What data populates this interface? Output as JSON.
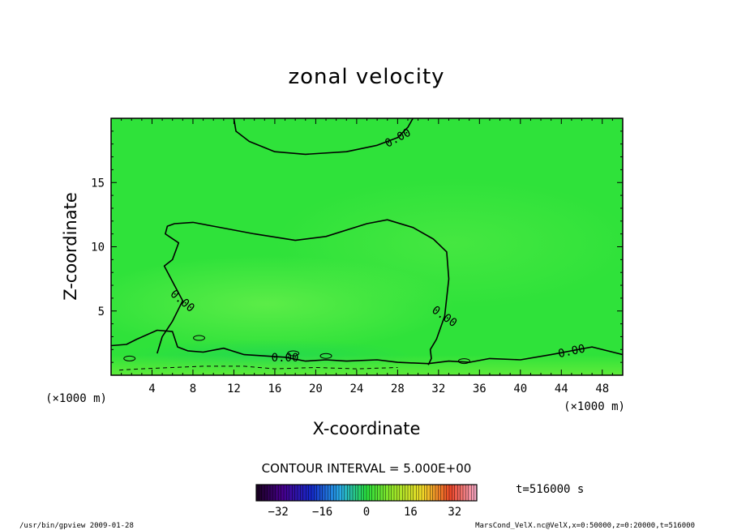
{
  "chart_data": {
    "type": "heatmap",
    "title": "zonal velocity",
    "xlabel": "X-coordinate",
    "ylabel": "Z-coordinate",
    "x_unit": "(×1000 m)",
    "y_unit": "(×1000 m)",
    "xlim": [
      0,
      50
    ],
    "ylim": [
      0,
      20
    ],
    "x_ticks": [
      4,
      8,
      12,
      16,
      20,
      24,
      28,
      32,
      36,
      40,
      44,
      48
    ],
    "y_ticks": [
      5,
      10,
      15
    ],
    "contour_interval_text": "CONTOUR INTERVAL = 5.000E+00",
    "contour_label": "0.00",
    "contours_zero": [
      [
        [
          12.0,
          20.0
        ],
        [
          12.2,
          19.0
        ],
        [
          13.5,
          18.2
        ],
        [
          16.0,
          17.4
        ],
        [
          19.0,
          17.2
        ],
        [
          23.0,
          17.4
        ],
        [
          26.0,
          17.9
        ],
        [
          28.0,
          18.5
        ],
        [
          29.0,
          19.3
        ],
        [
          29.5,
          20.0
        ]
      ],
      [
        [
          4.5,
          1.7
        ],
        [
          5.0,
          3.0
        ],
        [
          6.0,
          4.2
        ],
        [
          7.0,
          5.8
        ],
        [
          6.2,
          7.0
        ],
        [
          5.2,
          8.5
        ],
        [
          6.0,
          9.0
        ],
        [
          6.6,
          10.3
        ],
        [
          5.3,
          11.0
        ],
        [
          5.5,
          11.6
        ],
        [
          6.2,
          11.8
        ],
        [
          8.0,
          11.9
        ],
        [
          10.0,
          11.6
        ],
        [
          14.0,
          11.0
        ],
        [
          18.0,
          10.5
        ],
        [
          21.0,
          10.8
        ],
        [
          25.0,
          11.8
        ],
        [
          27.0,
          12.1
        ],
        [
          29.5,
          11.5
        ],
        [
          31.5,
          10.6
        ],
        [
          32.8,
          9.6
        ],
        [
          33.0,
          7.5
        ],
        [
          32.6,
          4.6
        ],
        [
          31.8,
          2.8
        ],
        [
          31.2,
          2.0
        ],
        [
          31.3,
          1.3
        ],
        [
          31.0,
          0.8
        ]
      ],
      [
        [
          0.0,
          2.3
        ],
        [
          1.5,
          2.4
        ],
        [
          2.5,
          2.8
        ],
        [
          4.5,
          3.5
        ],
        [
          6.0,
          3.4
        ],
        [
          6.5,
          2.2
        ],
        [
          7.5,
          1.9
        ],
        [
          9.0,
          1.8
        ],
        [
          11.0,
          2.1
        ],
        [
          13.0,
          1.6
        ],
        [
          15.0,
          1.5
        ],
        [
          17.0,
          1.4
        ],
        [
          19.0,
          1.1
        ],
        [
          21.0,
          1.2
        ],
        [
          23.0,
          1.1
        ],
        [
          26.0,
          1.2
        ],
        [
          28.0,
          1.0
        ],
        [
          31.0,
          0.9
        ],
        [
          33.0,
          1.1
        ],
        [
          35.0,
          1.0
        ],
        [
          37.0,
          1.3
        ],
        [
          40.0,
          1.2
        ],
        [
          43.0,
          1.6
        ],
        [
          45.0,
          1.9
        ],
        [
          47.0,
          2.2
        ],
        [
          50.0,
          1.6
        ]
      ]
    ],
    "contours_neg_dashed": [
      [
        [
          0.8,
          0.4
        ],
        [
          3.0,
          0.5
        ],
        [
          6.0,
          0.6
        ],
        [
          9.0,
          0.7
        ],
        [
          13.0,
          0.7
        ],
        [
          16.0,
          0.5
        ],
        [
          20.0,
          0.6
        ],
        [
          24.0,
          0.5
        ],
        [
          28.0,
          0.6
        ]
      ]
    ],
    "colorbar": {
      "min": -40,
      "max": 40,
      "tick_values": [
        -32,
        -16,
        0,
        16,
        32
      ],
      "tick_labels": [
        "−32",
        "−16",
        "0",
        "16",
        "32"
      ]
    },
    "colors": {
      "field": "#2fe23a",
      "field_light": "#55ee46",
      "field_bottom": "#74ef3a",
      "contour": "#000000"
    }
  },
  "time_label": "t=516000 s",
  "footer_left": "/usr/bin/gpview  2009-01-28",
  "footer_right": "MarsCond_VelX.nc@VelX,x=0:50000,z=0:20000,t=516000"
}
